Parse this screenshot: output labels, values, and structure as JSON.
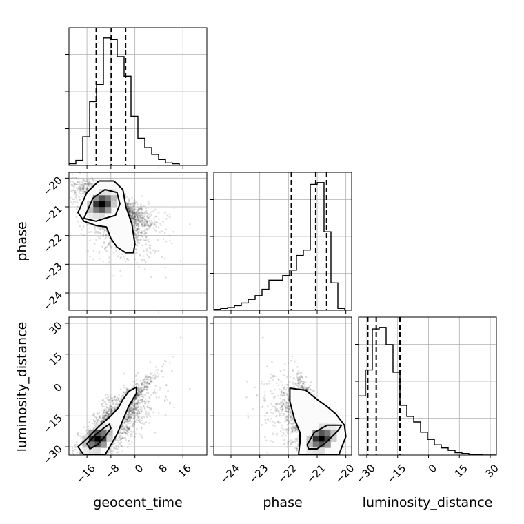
{
  "chart_data": {
    "type": "corner",
    "parameters": [
      "geocent_time",
      "phase",
      "luminosity_distance"
    ],
    "ranges": {
      "geocent_time": [
        -22,
        24
      ],
      "phase": [
        -24.6,
        -19.8
      ],
      "luminosity_distance": [
        -34,
        33
      ]
    },
    "ticks": {
      "geocent_time": [
        -16,
        -8,
        0,
        8,
        16
      ],
      "phase_y": [
        -20,
        -21,
        -22,
        -23,
        -24
      ],
      "phase_x": [
        -24,
        -23,
        -22,
        -21,
        -20
      ],
      "luminosity_distance": [
        -30,
        -15,
        0,
        15,
        30
      ]
    },
    "grid": true,
    "marginals": [
      {
        "parameter": "geocent_time",
        "bin_edges": [
          -22,
          -19.7,
          -17.4,
          -15.1,
          -12.8,
          -10.5,
          -8.2,
          -5.9,
          -3.6,
          -1.3,
          1,
          3.3,
          5.6,
          7.9,
          10.2,
          12.5,
          14.8,
          17.1,
          19.4,
          21.7,
          24
        ],
        "counts": [
          2,
          6,
          34,
          75,
          95,
          150,
          148,
          128,
          105,
          58,
          32,
          21,
          13,
          7,
          3,
          2,
          0,
          0,
          0,
          0
        ],
        "quantiles": [
          -12.9,
          -7.9,
          -3.1
        ]
      },
      {
        "parameter": "phase",
        "bin_edges": [
          -24.6,
          -24.36,
          -24.12,
          -23.88,
          -23.64,
          -23.4,
          -23.16,
          -22.92,
          -22.68,
          -22.44,
          -22.2,
          -21.96,
          -21.72,
          -21.48,
          -21.24,
          -21,
          -20.76,
          -20.52,
          -20.28,
          -20.04,
          -19.8
        ],
        "counts": [
          1,
          2,
          3,
          5,
          8,
          12,
          16,
          23,
          33,
          33,
          38,
          44,
          60,
          66,
          138,
          140,
          86,
          30,
          2,
          0
        ],
        "quantiles": [
          -21.9,
          -21.05,
          -20.67
        ]
      },
      {
        "parameter": "luminosity_distance",
        "bin_edges": [
          -34,
          -30.65,
          -27.3,
          -23.95,
          -20.6,
          -17.25,
          -13.9,
          -10.55,
          -7.2,
          -3.85,
          -0.5,
          2.85,
          6.2,
          9.55,
          12.9,
          16.25,
          19.6,
          22.95,
          26.3,
          29.65,
          33
        ],
        "counts": [
          75,
          108,
          160,
          162,
          140,
          105,
          63,
          49,
          42,
          29,
          20,
          13,
          9,
          6,
          3,
          2,
          1,
          1,
          0,
          0
        ],
        "quantiles": [
          -29.5,
          -25.4,
          -13.9
        ]
      }
    ],
    "pairs": [
      {
        "x": "geocent_time",
        "y": "phase",
        "peak": [
          -11,
          -20.9
        ],
        "contours": [
          [
            [
              -17,
              -21.4
            ],
            [
              -14,
              -20.7
            ],
            [
              -10,
              -20.4
            ],
            [
              -6,
              -20.5
            ],
            [
              -5,
              -20.9
            ],
            [
              -6.5,
              -21.3
            ],
            [
              -10,
              -21.4
            ],
            [
              -13,
              -21.5
            ]
          ],
          [
            [
              -19,
              -21.2
            ],
            [
              -16,
              -20.5
            ],
            [
              -12,
              -20.1
            ],
            [
              -7,
              -20.1
            ],
            [
              -4,
              -20.4
            ],
            [
              -3,
              -21.0
            ],
            [
              -1,
              -21.6
            ],
            [
              0,
              -22.3
            ],
            [
              -0.5,
              -22.6
            ],
            [
              -3,
              -22.6
            ],
            [
              -6,
              -22.4
            ],
            [
              -8,
              -22.1
            ],
            [
              -9.5,
              -21.7
            ],
            [
              -13,
              -21.65
            ],
            [
              -17,
              -21.5
            ]
          ]
        ]
      },
      {
        "x": "geocent_time",
        "y": "luminosity_distance",
        "peak": [
          -12.5,
          -26
        ],
        "contours": [
          [
            [
              -16,
              -28.5
            ],
            [
              -13.5,
              -24.5
            ],
            [
              -10,
              -20.5
            ],
            [
              -8.5,
              -19
            ],
            [
              -8,
              -21
            ],
            [
              -10,
              -25
            ],
            [
              -12.5,
              -29
            ],
            [
              -15,
              -31
            ]
          ],
          [
            [
              -19,
              -30
            ],
            [
              -16,
              -26
            ],
            [
              -12,
              -20
            ],
            [
              -8,
              -15
            ],
            [
              -5.5,
              -11
            ],
            [
              -4,
              -7
            ],
            [
              -2,
              -3
            ],
            [
              0.5,
              -1
            ],
            [
              0.5,
              -4
            ],
            [
              -2,
              -10
            ],
            [
              -4,
              -17
            ],
            [
              -6,
              -24
            ],
            [
              -8,
              -29
            ],
            [
              -10,
              -34
            ],
            [
              -17,
              -34
            ]
          ]
        ]
      },
      {
        "x": "phase",
        "y": "luminosity_distance",
        "peak": [
          -20.85,
          -26
        ],
        "contours": [
          [
            [
              -21.35,
              -29
            ],
            [
              -21.1,
              -23
            ],
            [
              -20.65,
              -19.5
            ],
            [
              -20.15,
              -19.5
            ],
            [
              -20.3,
              -22.5
            ],
            [
              -20.7,
              -28
            ],
            [
              -21.0,
              -31
            ],
            [
              -21.3,
              -31
            ]
          ],
          [
            [
              -21.95,
              -1.5
            ],
            [
              -21.4,
              -2.5
            ],
            [
              -21.0,
              -7
            ],
            [
              -20.65,
              -10.5
            ],
            [
              -20.35,
              -14
            ],
            [
              -20.05,
              -19.5
            ],
            [
              -20.0,
              -25
            ],
            [
              -20.25,
              -34
            ],
            [
              -21.65,
              -34
            ],
            [
              -21.6,
              -28
            ],
            [
              -21.6,
              -23
            ],
            [
              -21.8,
              -16
            ],
            [
              -21.95,
              -8
            ]
          ]
        ]
      }
    ]
  }
}
